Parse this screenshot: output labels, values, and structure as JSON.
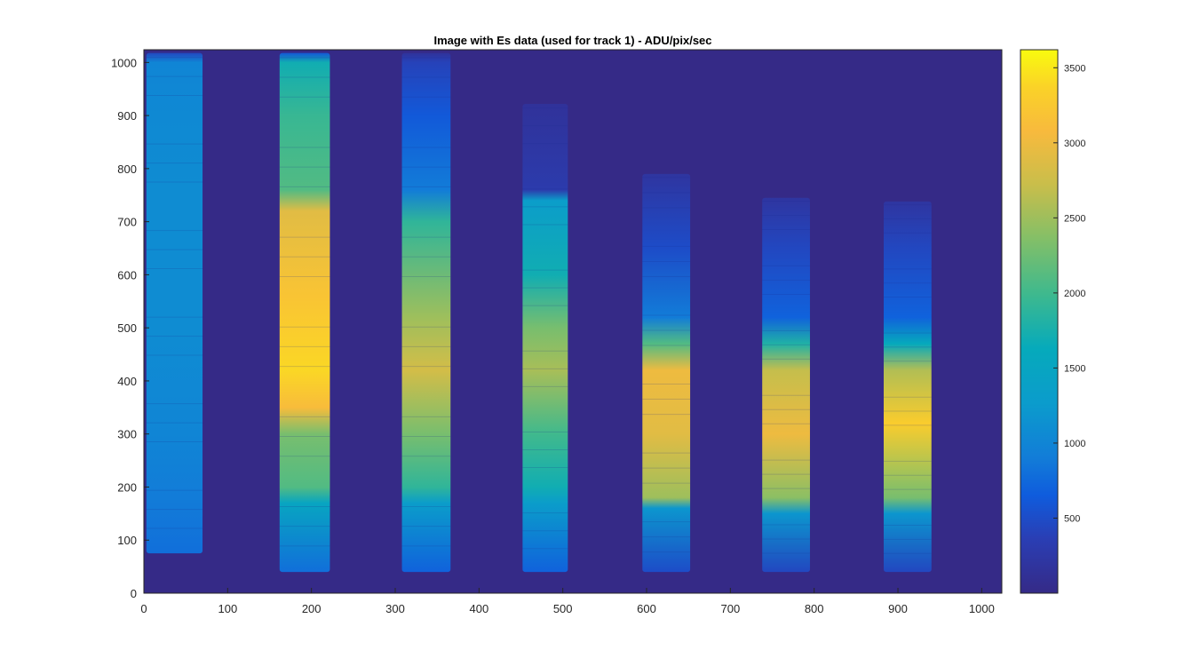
{
  "chart_data": {
    "type": "heatmap",
    "title": "Image with Es data (used for track 1) - ADU/pix/sec",
    "xlabel": "",
    "ylabel": "",
    "xlim": [
      0,
      1024
    ],
    "ylim": [
      0,
      1024
    ],
    "x_ticks": [
      0,
      100,
      200,
      300,
      400,
      500,
      600,
      700,
      800,
      900,
      1000
    ],
    "y_ticks": [
      0,
      100,
      200,
      300,
      400,
      500,
      600,
      700,
      800,
      900,
      1000
    ],
    "colormap": "parula",
    "colorbar": {
      "limits": [
        0,
        3620
      ],
      "ticks": [
        500,
        1000,
        1500,
        2000,
        2500,
        3000,
        3500
      ]
    },
    "background_value": 0,
    "tracks": [
      {
        "x_start": 3,
        "x_end": 70,
        "y_bottom": 75,
        "y_top": 1018,
        "peak_value": 1050,
        "profile": [
          [
            75,
            800
          ],
          [
            180,
            900
          ],
          [
            300,
            1000
          ],
          [
            500,
            1080
          ],
          [
            750,
            1080
          ],
          [
            900,
            1050
          ],
          [
            1000,
            1000
          ],
          [
            1018,
            450
          ]
        ]
      },
      {
        "x_start": 162,
        "x_end": 222,
        "y_bottom": 40,
        "y_top": 1018,
        "peak_value": 3450,
        "profile": [
          [
            40,
            800
          ],
          [
            170,
            1500
          ],
          [
            200,
            2100
          ],
          [
            300,
            2300
          ],
          [
            350,
            3100
          ],
          [
            420,
            3400
          ],
          [
            560,
            3200
          ],
          [
            720,
            2900
          ],
          [
            760,
            2100
          ],
          [
            900,
            1950
          ],
          [
            1000,
            1700
          ],
          [
            1018,
            600
          ]
        ]
      },
      {
        "x_start": 308,
        "x_end": 366,
        "y_bottom": 40,
        "y_top": 1018,
        "peak_value": 2900,
        "profile": [
          [
            40,
            700
          ],
          [
            170,
            1300
          ],
          [
            200,
            1900
          ],
          [
            300,
            2300
          ],
          [
            420,
            2800
          ],
          [
            520,
            2500
          ],
          [
            700,
            1900
          ],
          [
            760,
            900
          ],
          [
            900,
            620
          ],
          [
            1000,
            400
          ],
          [
            1018,
            150
          ]
        ]
      },
      {
        "x_start": 452,
        "x_end": 506,
        "y_bottom": 40,
        "y_top": 922,
        "peak_value": 2600,
        "profile": [
          [
            40,
            700
          ],
          [
            170,
            1300
          ],
          [
            200,
            1700
          ],
          [
            300,
            2000
          ],
          [
            420,
            2550
          ],
          [
            500,
            2300
          ],
          [
            600,
            1700
          ],
          [
            740,
            1300
          ],
          [
            760,
            300
          ],
          [
            922,
            150
          ]
        ]
      },
      {
        "x_start": 595,
        "x_end": 652,
        "y_bottom": 40,
        "y_top": 790,
        "peak_value": 3000,
        "profile": [
          [
            40,
            500
          ],
          [
            160,
            1200
          ],
          [
            180,
            2500
          ],
          [
            300,
            2900
          ],
          [
            420,
            3000
          ],
          [
            470,
            2100
          ],
          [
            520,
            900
          ],
          [
            650,
            500
          ],
          [
            790,
            200
          ]
        ]
      },
      {
        "x_start": 738,
        "x_end": 795,
        "y_bottom": 40,
        "y_top": 745,
        "peak_value": 3100,
        "profile": [
          [
            40,
            450
          ],
          [
            150,
            1200
          ],
          [
            180,
            2400
          ],
          [
            300,
            3000
          ],
          [
            420,
            2700
          ],
          [
            470,
            1800
          ],
          [
            520,
            700
          ],
          [
            650,
            450
          ],
          [
            745,
            200
          ]
        ]
      },
      {
        "x_start": 883,
        "x_end": 940,
        "y_bottom": 40,
        "y_top": 738,
        "peak_value": 3300,
        "profile": [
          [
            40,
            450
          ],
          [
            150,
            1200
          ],
          [
            180,
            2300
          ],
          [
            320,
            3300
          ],
          [
            420,
            2600
          ],
          [
            470,
            1600
          ],
          [
            520,
            700
          ],
          [
            650,
            450
          ],
          [
            738,
            200
          ]
        ]
      }
    ]
  }
}
